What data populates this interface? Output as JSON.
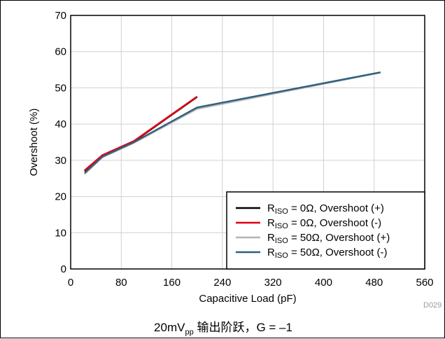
{
  "chart_data": {
    "type": "line",
    "title": "",
    "xlabel": "Capacitive Load (pF)",
    "ylabel": "Overshoot (%)",
    "xlim": [
      0,
      560
    ],
    "ylim": [
      0,
      70
    ],
    "xticks": [
      0,
      80,
      160,
      240,
      320,
      400,
      480,
      560
    ],
    "yticks": [
      0,
      10,
      20,
      30,
      40,
      50,
      60,
      70
    ],
    "grid": true,
    "legend_position": "bottom-right",
    "series": [
      {
        "name": "RISO = 0Ω, Overshoot (+)",
        "label_main": "R",
        "label_sub": "ISO",
        "label_rest": " = 0Ω, Overshoot (+)",
        "color": "#000000",
        "x": [
          22,
          50,
          100,
          200
        ],
        "y": [
          27,
          31.3,
          35.2,
          47.5
        ]
      },
      {
        "name": "RISO = 0Ω, Overshoot (-)",
        "label_main": "R",
        "label_sub": "ISO",
        "label_rest": " = 0Ω, Overshoot (-)",
        "color": "#e3000f",
        "x": [
          22,
          50,
          100,
          200
        ],
        "y": [
          27.2,
          31.4,
          35.3,
          47.6
        ]
      },
      {
        "name": "RISO = 50Ω, Overshoot (+)",
        "label_main": "R",
        "label_sub": "ISO",
        "label_rest": " = 50Ω, Overshoot (+)",
        "color": "#b3b3b3",
        "x": [
          22,
          50,
          100,
          200,
          490
        ],
        "y": [
          26.2,
          30.8,
          34.8,
          44.2,
          54.2
        ]
      },
      {
        "name": "RISO = 50Ω, Overshoot (-)",
        "label_main": "R",
        "label_sub": "ISO",
        "label_rest": " = 50Ω, Overshoot (-)",
        "color": "#2f5f7f",
        "x": [
          22,
          50,
          100,
          200,
          490
        ],
        "y": [
          26.5,
          31,
          35,
          44.6,
          54.3
        ]
      }
    ]
  },
  "figure_id": "D029",
  "caption": {
    "prefix": "20mV",
    "sub": "pp",
    "suffix": " 输出阶跃，G = –1"
  }
}
